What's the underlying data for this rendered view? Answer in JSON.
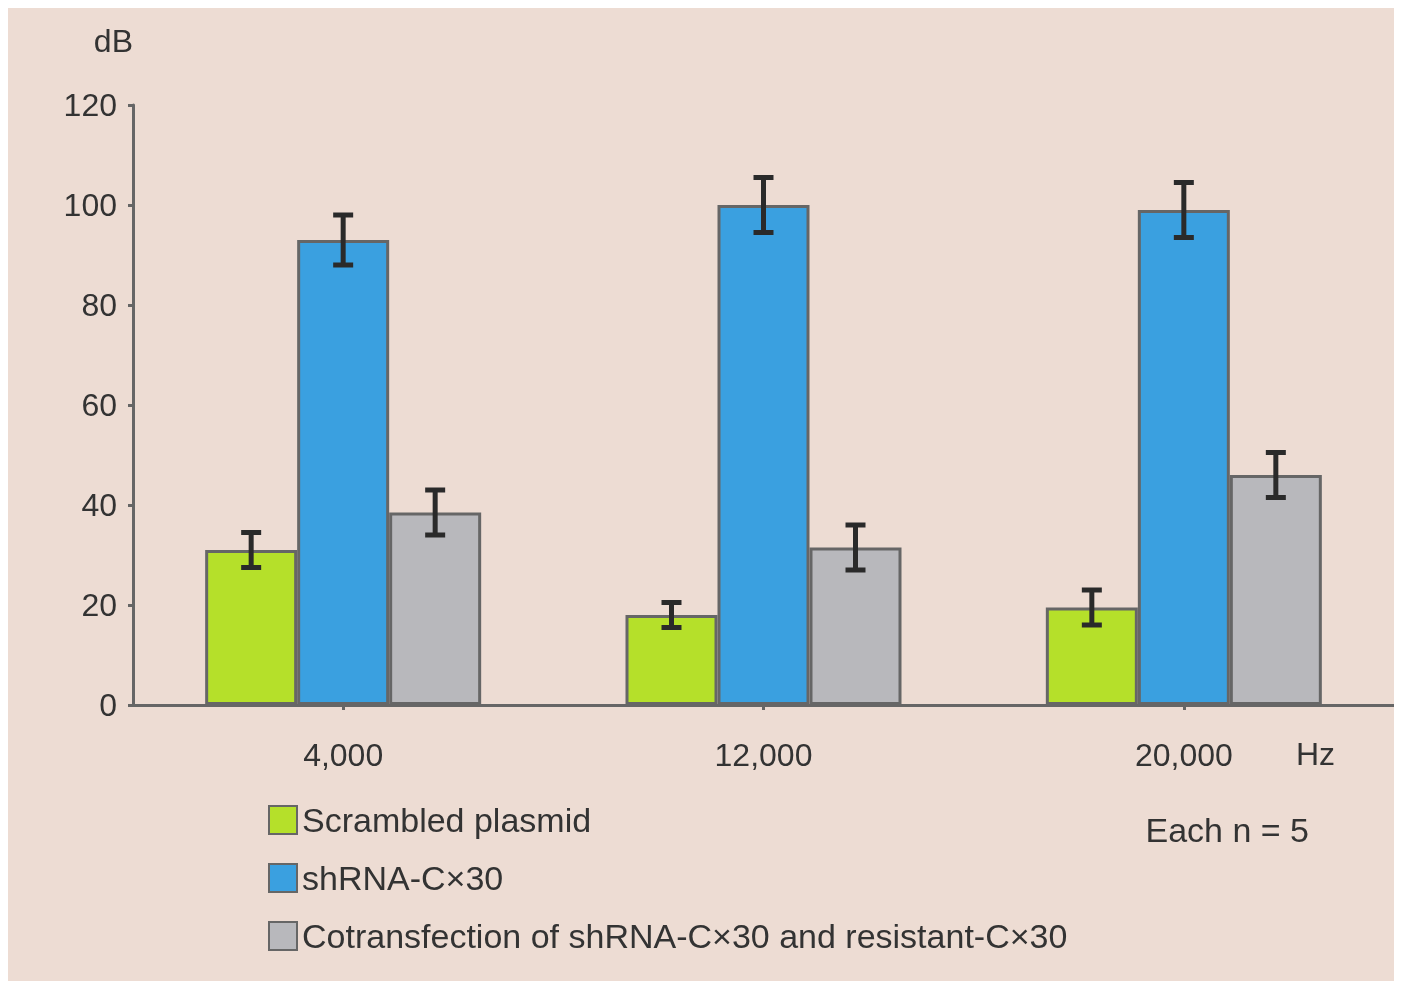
{
  "chart_data": {
    "type": "bar",
    "ylabel": "dB",
    "xlabel": "Hz",
    "categories": [
      "4,000",
      "12,000",
      "20,000"
    ],
    "series": [
      {
        "name": "Scrambled plasmid",
        "color": "#b5e02a",
        "values": [
          31,
          18,
          19.5
        ],
        "errors": [
          3.5,
          2.5,
          3.5
        ]
      },
      {
        "name": "shRNA-C×30",
        "color": "#3aa0e0",
        "values": [
          93,
          100,
          99
        ],
        "errors": [
          5,
          5.5,
          5.5
        ]
      },
      {
        "name": "Cotransfection of shRNA-C×30 and resistant-C×30",
        "color": "#b8b8bc",
        "values": [
          38.5,
          31.5,
          46
        ],
        "errors": [
          4.5,
          4.5,
          4.5
        ]
      }
    ],
    "ylim": [
      0,
      120
    ],
    "yticks": [
      0,
      20,
      40,
      60,
      80,
      100,
      120
    ],
    "grid": false,
    "legend": "bottom left",
    "annotations": [
      "Each n = 5"
    ]
  }
}
